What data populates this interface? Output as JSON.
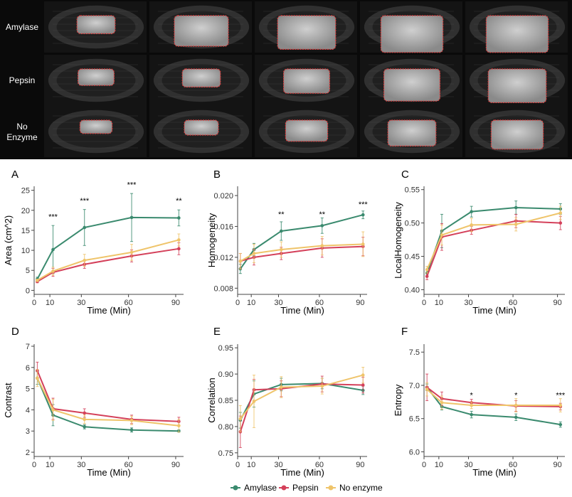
{
  "image_rows": [
    {
      "label_lines": [
        "Amylase"
      ]
    },
    {
      "label_lines": [
        "Pepsin"
      ]
    },
    {
      "label_lines": [
        "No",
        "Enzyme"
      ]
    }
  ],
  "image_growth": [
    [
      0.35,
      0.75,
      0.85,
      0.95,
      0.95
    ],
    [
      0.3,
      0.35,
      0.55,
      0.8,
      0.85
    ],
    [
      0.2,
      0.25,
      0.45,
      0.6,
      0.7
    ]
  ],
  "legend": [
    "Amylase",
    "Pepsin",
    "No enzyme"
  ],
  "colors": {
    "Amylase": "#3a8a6e",
    "Pepsin": "#d4405a",
    "No enzyme": "#efc46a"
  },
  "chart_data": [
    {
      "panel": "A",
      "type": "line",
      "xlabel": "Time (Min)",
      "ylabel": "Area (cm^2)",
      "xlim": [
        0,
        95
      ],
      "ylim": [
        -1,
        26
      ],
      "xticks": [
        "0",
        "10",
        "30",
        "60",
        "90"
      ],
      "xtick_values": [
        0,
        10,
        30,
        60,
        90
      ],
      "yticks": [
        "0",
        "5",
        "10",
        "15",
        "20",
        "25"
      ],
      "ytick_values": [
        0,
        5,
        10,
        15,
        20,
        25
      ],
      "x": [
        2,
        12,
        32,
        62,
        92
      ],
      "series": [
        {
          "name": "Amylase",
          "values": [
            2.8,
            10.2,
            15.7,
            18.2,
            18.1
          ],
          "err": [
            0.5,
            6.0,
            4.5,
            6.0,
            2.0
          ]
        },
        {
          "name": "Pepsin",
          "values": [
            2.2,
            4.5,
            6.5,
            8.6,
            10.4
          ],
          "err": [
            0.3,
            1.0,
            1.0,
            1.5,
            1.5
          ]
        },
        {
          "name": "No enzyme",
          "values": [
            2.5,
            4.8,
            7.5,
            9.5,
            12.6
          ],
          "err": [
            0.3,
            1.0,
            1.5,
            2.0,
            1.5
          ]
        }
      ],
      "significance": [
        {
          "x": 12,
          "y": 17.7,
          "text": "***"
        },
        {
          "x": 32,
          "y": 21.7,
          "text": "***"
        },
        {
          "x": 62,
          "y": 25.7,
          "text": "***"
        },
        {
          "x": 92,
          "y": 21.7,
          "text": "**"
        }
      ]
    },
    {
      "panel": "B",
      "type": "line",
      "xlabel": "Time (Min)",
      "ylabel": "Homogeneity",
      "xlim": [
        0,
        95
      ],
      "ylim": [
        0.0072,
        0.0212
      ],
      "xticks": [
        "0",
        "10",
        "30",
        "60",
        "90"
      ],
      "xtick_values": [
        0,
        10,
        30,
        60,
        90
      ],
      "yticks": [
        "0.008",
        "0.012",
        "0.016",
        "0.020"
      ],
      "ytick_values": [
        0.008,
        0.012,
        0.016,
        0.02
      ],
      "x": [
        2,
        12,
        32,
        62,
        92
      ],
      "series": [
        {
          "name": "Amylase",
          "values": [
            0.0105,
            0.013,
            0.0154,
            0.0161,
            0.0175
          ],
          "err": [
            0.0006,
            0.0008,
            0.0012,
            0.001,
            0.0005
          ]
        },
        {
          "name": "Pepsin",
          "values": [
            0.0115,
            0.012,
            0.0125,
            0.0132,
            0.0134
          ],
          "err": [
            0.001,
            0.001,
            0.0008,
            0.0012,
            0.0012
          ]
        },
        {
          "name": "No enzyme",
          "values": [
            0.0115,
            0.0125,
            0.013,
            0.0135,
            0.0137
          ],
          "err": [
            0.001,
            0.0012,
            0.001,
            0.0012,
            0.0016
          ]
        }
      ],
      "significance": [
        {
          "x": 32,
          "y": 0.01725,
          "text": "**"
        },
        {
          "x": 62,
          "y": 0.01725,
          "text": "**"
        },
        {
          "x": 92,
          "y": 0.01855,
          "text": "***"
        }
      ]
    },
    {
      "panel": "C",
      "type": "line",
      "xlabel": "Time (Min)",
      "ylabel": "LocalHomogeneity",
      "xlim": [
        0,
        95
      ],
      "ylim": [
        0.393,
        0.555
      ],
      "xticks": [
        "0",
        "10",
        "30",
        "60",
        "90"
      ],
      "xtick_values": [
        0,
        10,
        30,
        60,
        90
      ],
      "yticks": [
        "0.40",
        "0.45",
        "0.50",
        "0.55"
      ],
      "ytick_values": [
        0.4,
        0.45,
        0.5,
        0.55
      ],
      "x": [
        2,
        12,
        32,
        62,
        92
      ],
      "series": [
        {
          "name": "Amylase",
          "values": [
            0.425,
            0.488,
            0.517,
            0.523,
            0.521
          ],
          "err": [
            0.005,
            0.025,
            0.008,
            0.01,
            0.008
          ]
        },
        {
          "name": "Pepsin",
          "values": [
            0.42,
            0.479,
            0.489,
            0.503,
            0.5
          ],
          "err": [
            0.005,
            0.02,
            0.006,
            0.01,
            0.01
          ]
        },
        {
          "name": "No enzyme",
          "values": [
            0.43,
            0.482,
            0.497,
            0.498,
            0.515
          ],
          "err": [
            0.005,
            0.015,
            0.01,
            0.01,
            0.01
          ]
        }
      ],
      "significance": []
    },
    {
      "panel": "D",
      "type": "line",
      "xlabel": "Time (Min)",
      "ylabel": "Contrast",
      "xlim": [
        0,
        95
      ],
      "ylim": [
        1.8,
        7.1
      ],
      "xticks": [
        "0",
        "10",
        "30",
        "60",
        "90"
      ],
      "xtick_values": [
        0,
        10,
        30,
        60,
        90
      ],
      "yticks": [
        "2",
        "3",
        "4",
        "5",
        "6",
        "7"
      ],
      "ytick_values": [
        2,
        3,
        4,
        5,
        6,
        7
      ],
      "x": [
        2,
        12,
        32,
        62,
        92
      ],
      "series": [
        {
          "name": "Amylase",
          "values": [
            5.5,
            3.75,
            3.2,
            3.05,
            3.0
          ],
          "err": [
            0.3,
            0.5,
            0.1,
            0.1,
            0.05
          ]
        },
        {
          "name": "Pepsin",
          "values": [
            5.85,
            4.05,
            3.85,
            3.55,
            3.45
          ],
          "err": [
            0.4,
            0.5,
            0.2,
            0.2,
            0.2
          ]
        },
        {
          "name": "No enzyme",
          "values": [
            5.5,
            4.0,
            3.55,
            3.5,
            3.25
          ],
          "err": [
            0.4,
            0.5,
            0.2,
            0.2,
            0.3
          ]
        }
      ],
      "significance": []
    },
    {
      "panel": "E",
      "type": "line",
      "xlabel": "Time (Min)",
      "ylabel": "Correlation",
      "xlim": [
        0,
        95
      ],
      "ylim": [
        0.743,
        0.957
      ],
      "xticks": [
        "0",
        "10",
        "30",
        "60",
        "90"
      ],
      "xtick_values": [
        0,
        10,
        30,
        60,
        90
      ],
      "yticks": [
        "0.75",
        "0.80",
        "0.85",
        "0.90",
        "0.95"
      ],
      "ytick_values": [
        0.75,
        0.8,
        0.85,
        0.9,
        0.95
      ],
      "x": [
        2,
        12,
        32,
        62,
        92
      ],
      "series": [
        {
          "name": "Amylase",
          "values": [
            0.812,
            0.862,
            0.88,
            0.882,
            0.869
          ],
          "err": [
            0.015,
            0.025,
            0.012,
            0.01,
            0.008
          ]
        },
        {
          "name": "Pepsin",
          "values": [
            0.79,
            0.87,
            0.872,
            0.881,
            0.879
          ],
          "err": [
            0.03,
            0.02,
            0.015,
            0.015,
            0.015
          ]
        },
        {
          "name": "No enzyme",
          "values": [
            0.815,
            0.848,
            0.875,
            0.877,
            0.898
          ],
          "err": [
            0.025,
            0.05,
            0.02,
            0.015,
            0.015
          ]
        }
      ],
      "significance": []
    },
    {
      "panel": "F",
      "type": "line",
      "xlabel": "Time (Min)",
      "ylabel": "Entropy",
      "xlim": [
        0,
        95
      ],
      "ylim": [
        5.93,
        7.62
      ],
      "xticks": [
        "0",
        "10",
        "30",
        "60",
        "90"
      ],
      "xtick_values": [
        0,
        10,
        30,
        60,
        90
      ],
      "yticks": [
        "6.0",
        "6.5",
        "7.0",
        "7.5"
      ],
      "ytick_values": [
        6.0,
        6.5,
        7.0,
        7.5
      ],
      "x": [
        2,
        12,
        32,
        62,
        92
      ],
      "series": [
        {
          "name": "Amylase",
          "values": [
            6.97,
            6.68,
            6.56,
            6.52,
            6.41
          ],
          "err": [
            0.05,
            0.05,
            0.05,
            0.05,
            0.04
          ]
        },
        {
          "name": "Pepsin",
          "values": [
            6.97,
            6.8,
            6.74,
            6.69,
            6.68
          ],
          "err": [
            0.2,
            0.1,
            0.05,
            0.08,
            0.05
          ]
        },
        {
          "name": "No enzyme",
          "values": [
            6.94,
            6.74,
            6.7,
            6.7,
            6.7
          ],
          "err": [
            0.1,
            0.1,
            0.05,
            0.1,
            0.1
          ]
        }
      ],
      "significance": [
        {
          "x": 32,
          "y": 6.81,
          "text": "*"
        },
        {
          "x": 62,
          "y": 6.81,
          "text": "*"
        },
        {
          "x": 92,
          "y": 6.81,
          "text": "***"
        }
      ]
    }
  ]
}
